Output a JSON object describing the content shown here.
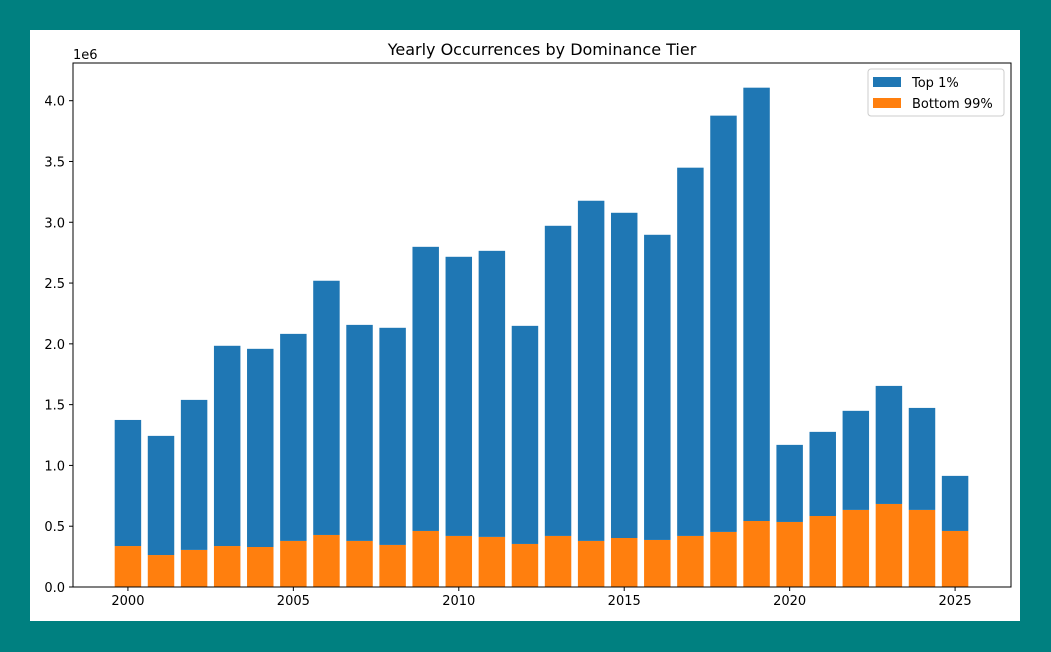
{
  "chart_data": {
    "type": "bar",
    "stacked": true,
    "title": "Yearly Occurrences by Dominance Tier",
    "xlabel": "",
    "ylabel": "",
    "y_offset_label": "1e6",
    "x": [
      2000,
      2001,
      2002,
      2003,
      2004,
      2005,
      2006,
      2007,
      2008,
      2009,
      2010,
      2011,
      2012,
      2013,
      2014,
      2015,
      2016,
      2017,
      2018,
      2019,
      2020,
      2021,
      2022,
      2023,
      2024,
      2025
    ],
    "series": [
      {
        "name": "Bottom 99%",
        "color": "#ff7f0e",
        "values": [
          0.337,
          0.263,
          0.305,
          0.337,
          0.329,
          0.379,
          0.428,
          0.379,
          0.346,
          0.461,
          0.42,
          0.412,
          0.354,
          0.42,
          0.379,
          0.403,
          0.387,
          0.42,
          0.453,
          0.543,
          0.535,
          0.584,
          0.634,
          0.683,
          0.634,
          0.461
        ]
      },
      {
        "name": "Top 1%",
        "color": "#1f77b4",
        "values": [
          1.037,
          0.98,
          1.234,
          1.647,
          1.63,
          1.703,
          2.091,
          1.777,
          1.786,
          2.337,
          2.296,
          2.353,
          1.794,
          2.551,
          2.798,
          2.675,
          2.51,
          3.029,
          3.424,
          3.564,
          0.634,
          0.692,
          0.815,
          0.971,
          0.839,
          0.453
        ]
      }
    ],
    "xlim": [
      1998.34,
      2026.69
    ],
    "ylim": [
      0,
      4.31
    ],
    "xticks": [
      2000,
      2005,
      2010,
      2015,
      2020,
      2025
    ],
    "yticks": [
      "0.0",
      "0.5",
      "1.0",
      "1.5",
      "2.0",
      "2.5",
      "3.0",
      "3.5",
      "4.0"
    ],
    "legend": {
      "placement": "top-right",
      "entries": [
        "Top 1%",
        "Bottom 99%"
      ]
    },
    "grid": false
  }
}
